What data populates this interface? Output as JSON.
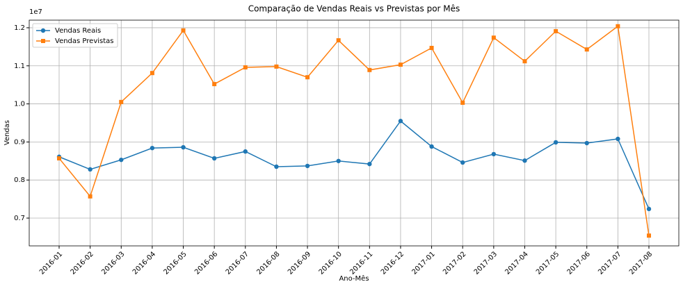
{
  "chart_data": {
    "type": "line",
    "title": "Comparação de Vendas Reais vs Previstas por Mês",
    "xlabel": "Ano-Mês",
    "ylabel": "Vendas",
    "y_offset_label": "1e7",
    "categories": [
      "2016-01",
      "2016-02",
      "2016-03",
      "2016-04",
      "2016-05",
      "2016-06",
      "2016-07",
      "2016-08",
      "2016-09",
      "2016-10",
      "2016-11",
      "2016-12",
      "2017-01",
      "2017-02",
      "2017-03",
      "2017-04",
      "2017-05",
      "2017-06",
      "2017-07",
      "2017-08"
    ],
    "series": [
      {
        "name": "Vendas Reais",
        "color": "#1f77b4",
        "marker": "circle",
        "values": [
          0.861,
          0.828,
          0.853,
          0.884,
          0.886,
          0.857,
          0.875,
          0.835,
          0.837,
          0.85,
          0.842,
          0.955,
          0.888,
          0.846,
          0.868,
          0.851,
          0.899,
          0.897,
          0.908,
          0.724
        ]
      },
      {
        "name": "Vendas Previstas",
        "color": "#ff7f0e",
        "marker": "square",
        "values": [
          0.857,
          0.757,
          1.005,
          1.081,
          1.193,
          1.052,
          1.096,
          1.098,
          1.07,
          1.167,
          1.089,
          1.103,
          1.147,
          1.003,
          1.174,
          1.112,
          1.191,
          1.143,
          1.204,
          0.654
        ]
      }
    ],
    "ylim": [
      0.627,
      1.22
    ],
    "yticks": [
      0.7,
      0.8,
      0.9,
      {
        "value": 1,
        "label": "1.0"
      },
      1.1,
      1.2
    ],
    "grid": true,
    "legend": "upper-left"
  }
}
